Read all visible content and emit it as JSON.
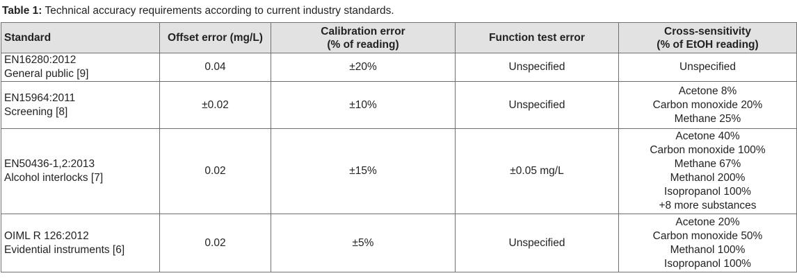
{
  "caption": {
    "label": "Table 1:",
    "text": " Technical accuracy requirements according to current industry standards."
  },
  "table": {
    "headers": [
      {
        "lines": [
          "Standard"
        ]
      },
      {
        "lines": [
          "Offset error (mg/L)"
        ]
      },
      {
        "lines": [
          "Calibration error",
          "(% of reading)"
        ]
      },
      {
        "lines": [
          "Function test error"
        ]
      },
      {
        "lines": [
          "Cross-sensitivity",
          "(% of EtOH reading)"
        ]
      }
    ],
    "rows": [
      {
        "standard": [
          "EN16280:2012",
          "General public [9]"
        ],
        "offset": "0.04",
        "calibration": "±20%",
        "function": "Unspecified",
        "cross": [
          "Unspecified"
        ]
      },
      {
        "standard": [
          "EN15964:2011",
          "Screening [8]"
        ],
        "offset": "±0.02",
        "calibration": "±10%",
        "function": "Unspecified",
        "cross": [
          "Acetone 8%",
          "Carbon monoxide 20%",
          "Methane 25%"
        ]
      },
      {
        "standard": [
          "EN50436-1,2:2013",
          "Alcohol interlocks [7]"
        ],
        "offset": "0.02",
        "calibration": "±15%",
        "function": "±0.05 mg/L",
        "cross": [
          "Acetone 40%",
          "Carbon monoxide 100%",
          "Methane 67%",
          "Methanol 200%",
          "Isopropanol 100%",
          "+8 more substances"
        ]
      },
      {
        "standard": [
          "OIML R 126:2012",
          "Evidential instruments [6]"
        ],
        "offset": "0.02",
        "calibration": "±5%",
        "function": "Unspecified",
        "cross": [
          "Acetone 20%",
          "Carbon monoxide 50%",
          "Methanol 100%",
          "Isopropanol 100%"
        ]
      }
    ]
  }
}
